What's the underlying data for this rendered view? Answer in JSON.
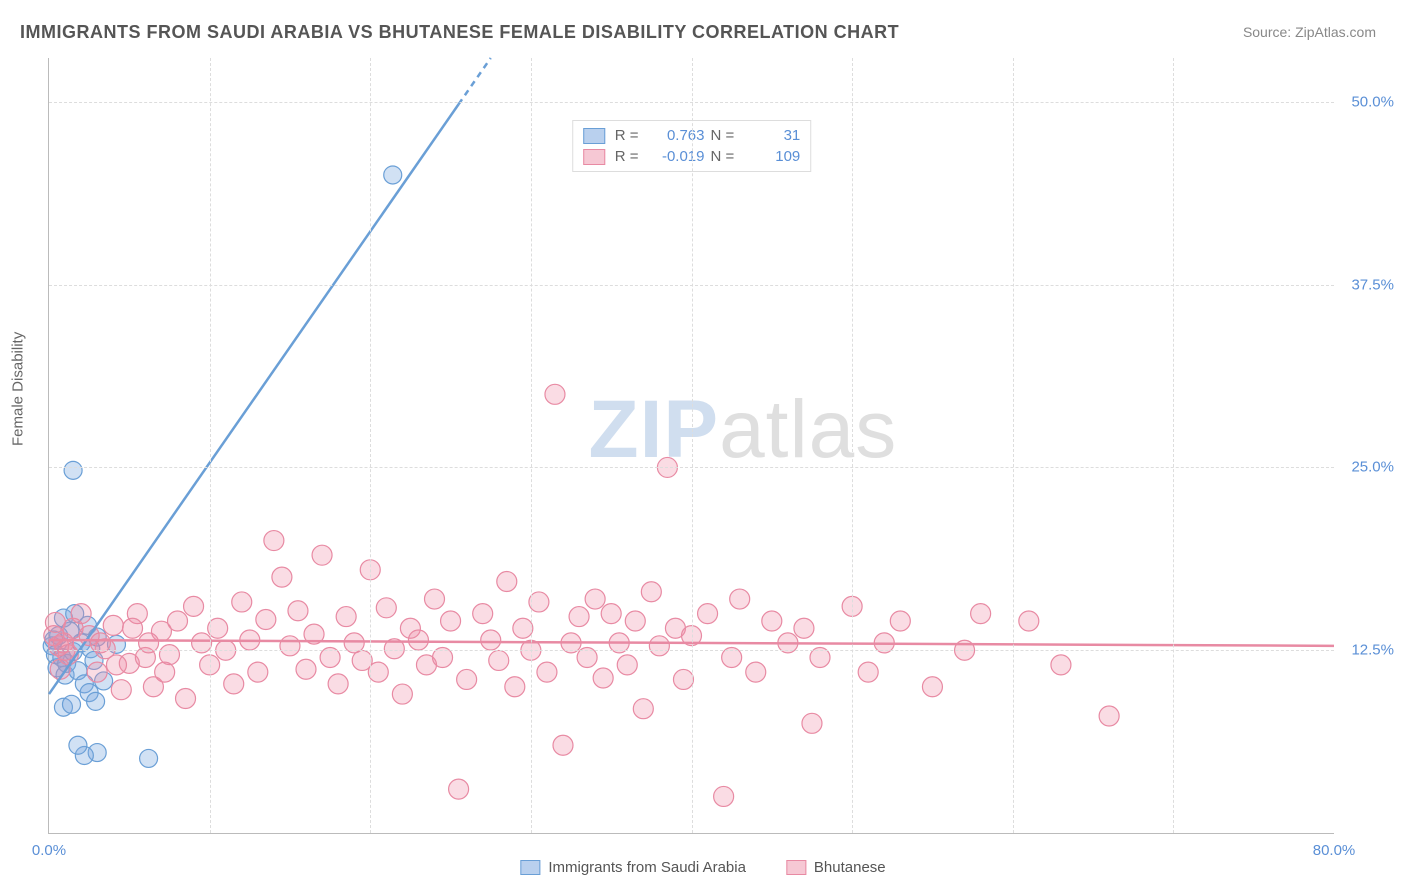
{
  "title": "IMMIGRANTS FROM SAUDI ARABIA VS BHUTANESE FEMALE DISABILITY CORRELATION CHART",
  "source_label": "Source: ",
  "source_value": "ZipAtlas.com",
  "ylabel": "Female Disability",
  "watermark_a": "ZIP",
  "watermark_b": "atlas",
  "chart": {
    "type": "scatter",
    "xlim": [
      0,
      80
    ],
    "ylim": [
      0,
      53
    ],
    "xtick_labels": [
      {
        "v": 0,
        "t": "0.0%"
      },
      {
        "v": 80,
        "t": "80.0%"
      }
    ],
    "xtick_positions_nolabel": [
      10,
      20,
      30,
      40,
      50,
      60,
      70
    ],
    "ytick_labels": [
      {
        "v": 12.5,
        "t": "12.5%"
      },
      {
        "v": 25.0,
        "t": "25.0%"
      },
      {
        "v": 37.5,
        "t": "37.5%"
      },
      {
        "v": 50.0,
        "t": "50.0%"
      }
    ],
    "grid_color": "#dddddd",
    "axis_color": "#bbbbbb",
    "tick_label_color": "#5a8fd6",
    "series": [
      {
        "name": "Immigrants from Saudi Arabia",
        "key": "saudi",
        "color_fill": "rgba(122,168,224,0.35)",
        "color_stroke": "#6a9fd6",
        "legend_swatch_fill": "#b9d0ee",
        "legend_swatch_border": "#6a9fd6",
        "R": "0.763",
        "N": "31",
        "trend": {
          "x0": 0,
          "y0": 9.5,
          "x1": 27.5,
          "y1": 53,
          "dashed_from_x": 25.5
        },
        "marker_r": 9,
        "points": [
          [
            0.2,
            12.8
          ],
          [
            0.3,
            13.2
          ],
          [
            0.4,
            12.2
          ],
          [
            0.5,
            11.3
          ],
          [
            0.6,
            13.5
          ],
          [
            0.8,
            12.0
          ],
          [
            0.9,
            14.7
          ],
          [
            1.0,
            10.8
          ],
          [
            1.1,
            11.6
          ],
          [
            1.3,
            13.8
          ],
          [
            1.5,
            12.4
          ],
          [
            1.6,
            15.0
          ],
          [
            1.8,
            11.1
          ],
          [
            2.0,
            13.0
          ],
          [
            2.2,
            10.2
          ],
          [
            2.4,
            14.2
          ],
          [
            2.6,
            12.6
          ],
          [
            2.8,
            11.8
          ],
          [
            3.0,
            13.4
          ],
          [
            1.5,
            24.8
          ],
          [
            0.9,
            8.6
          ],
          [
            1.4,
            8.8
          ],
          [
            2.5,
            9.6
          ],
          [
            2.9,
            9.0
          ],
          [
            3.4,
            10.4
          ],
          [
            6.2,
            5.1
          ],
          [
            3.0,
            5.5
          ],
          [
            2.2,
            5.3
          ],
          [
            1.8,
            6.0
          ],
          [
            21.4,
            45.0
          ],
          [
            4.2,
            12.9
          ]
        ]
      },
      {
        "name": "Bhutanese",
        "key": "bhutanese",
        "color_fill": "rgba(238,140,165,0.30)",
        "color_stroke": "#e88aa3",
        "legend_swatch_fill": "#f6c8d4",
        "legend_swatch_border": "#e88aa3",
        "R": "-0.019",
        "N": "109",
        "trend": {
          "x0": 0,
          "y0": 13.2,
          "x1": 80,
          "y1": 12.8
        },
        "marker_r": 10,
        "points": [
          [
            0.3,
            13.5
          ],
          [
            0.6,
            12.8
          ],
          [
            0.9,
            13.0
          ],
          [
            1.5,
            14.0
          ],
          [
            1.2,
            12.2
          ],
          [
            2.5,
            13.5
          ],
          [
            3.0,
            11.0
          ],
          [
            3.5,
            12.6
          ],
          [
            4.0,
            14.2
          ],
          [
            4.5,
            9.8
          ],
          [
            5.0,
            11.6
          ],
          [
            5.5,
            15.0
          ],
          [
            6.0,
            12.0
          ],
          [
            6.5,
            10.0
          ],
          [
            7.0,
            13.8
          ],
          [
            7.5,
            12.2
          ],
          [
            8.0,
            14.5
          ],
          [
            8.5,
            9.2
          ],
          [
            9.0,
            15.5
          ],
          [
            9.5,
            13.0
          ],
          [
            10.0,
            11.5
          ],
          [
            10.5,
            14.0
          ],
          [
            11.0,
            12.5
          ],
          [
            11.5,
            10.2
          ],
          [
            12.0,
            15.8
          ],
          [
            12.5,
            13.2
          ],
          [
            13.0,
            11.0
          ],
          [
            13.5,
            14.6
          ],
          [
            14.0,
            20.0
          ],
          [
            14.5,
            17.5
          ],
          [
            15.0,
            12.8
          ],
          [
            15.5,
            15.2
          ],
          [
            16.0,
            11.2
          ],
          [
            16.5,
            13.6
          ],
          [
            17.0,
            19.0
          ],
          [
            17.5,
            12.0
          ],
          [
            18.0,
            10.2
          ],
          [
            18.5,
            14.8
          ],
          [
            19.0,
            13.0
          ],
          [
            19.5,
            11.8
          ],
          [
            20.0,
            18.0
          ],
          [
            20.5,
            11.0
          ],
          [
            21.0,
            15.4
          ],
          [
            21.5,
            12.6
          ],
          [
            22.0,
            9.5
          ],
          [
            22.5,
            14.0
          ],
          [
            23.0,
            13.2
          ],
          [
            23.5,
            11.5
          ],
          [
            24.0,
            16.0
          ],
          [
            24.5,
            12.0
          ],
          [
            25.0,
            14.5
          ],
          [
            25.5,
            3.0
          ],
          [
            26.0,
            10.5
          ],
          [
            27.0,
            15.0
          ],
          [
            27.5,
            13.2
          ],
          [
            28.0,
            11.8
          ],
          [
            28.5,
            17.2
          ],
          [
            29.0,
            10.0
          ],
          [
            29.5,
            14.0
          ],
          [
            30.0,
            12.5
          ],
          [
            30.5,
            15.8
          ],
          [
            31.0,
            11.0
          ],
          [
            31.5,
            30.0
          ],
          [
            32.0,
            6.0
          ],
          [
            32.5,
            13.0
          ],
          [
            33.0,
            14.8
          ],
          [
            33.5,
            12.0
          ],
          [
            34.0,
            16.0
          ],
          [
            34.5,
            10.6
          ],
          [
            35.0,
            15.0
          ],
          [
            35.5,
            13.0
          ],
          [
            36.0,
            11.5
          ],
          [
            36.5,
            14.5
          ],
          [
            37.0,
            8.5
          ],
          [
            37.5,
            16.5
          ],
          [
            38.0,
            12.8
          ],
          [
            38.5,
            25.0
          ],
          [
            39.0,
            14.0
          ],
          [
            39.5,
            10.5
          ],
          [
            40.0,
            13.5
          ],
          [
            41.0,
            15.0
          ],
          [
            42.0,
            2.5
          ],
          [
            42.5,
            12.0
          ],
          [
            43.0,
            16.0
          ],
          [
            44.0,
            11.0
          ],
          [
            45.0,
            14.5
          ],
          [
            46.0,
            13.0
          ],
          [
            47.0,
            14.0
          ],
          [
            47.5,
            7.5
          ],
          [
            48.0,
            12.0
          ],
          [
            50.0,
            15.5
          ],
          [
            51.0,
            11.0
          ],
          [
            52.0,
            13.0
          ],
          [
            53.0,
            14.5
          ],
          [
            55.0,
            10.0
          ],
          [
            57.0,
            12.5
          ],
          [
            58.0,
            15.0
          ],
          [
            61.0,
            14.5
          ],
          [
            63.0,
            11.5
          ],
          [
            66.0,
            8.0
          ],
          [
            0.4,
            14.4
          ],
          [
            0.7,
            11.2
          ],
          [
            1.0,
            12.5
          ],
          [
            2.0,
            15.0
          ],
          [
            3.2,
            13.0
          ],
          [
            4.2,
            11.5
          ],
          [
            5.2,
            14.0
          ],
          [
            6.2,
            13.0
          ],
          [
            7.2,
            11.0
          ]
        ]
      }
    ]
  },
  "legend_labels": {
    "R": "R =",
    "N": "N ="
  }
}
